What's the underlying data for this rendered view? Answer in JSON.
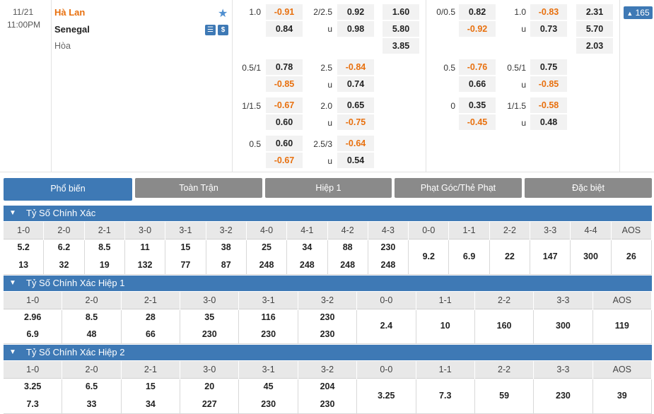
{
  "match": {
    "date": "11/21",
    "time": "11:00PM",
    "home": "Hà Lan",
    "away": "Senegal",
    "draw": "Hòa",
    "more_count": "165"
  },
  "odds_top": {
    "handicap": [
      {
        "line": "1.0",
        "home": "-0.91",
        "away": "0.84"
      },
      {
        "line": "0.5/1",
        "home": "0.78",
        "away": "-0.85"
      },
      {
        "line": "1/1.5",
        "home": "-0.67",
        "away": "0.60"
      },
      {
        "line": "0.5",
        "home": "0.60",
        "away": "-0.67"
      }
    ],
    "overunder": [
      {
        "line": "2/2.5",
        "u": "u",
        "over": "0.92",
        "under": "0.98"
      },
      {
        "line": "2.5",
        "u": "u",
        "over": "-0.84",
        "under": "0.74"
      },
      {
        "line": "2.0",
        "u": "u",
        "over": "0.65",
        "under": "-0.75"
      },
      {
        "line": "2.5/3",
        "u": "u",
        "over": "-0.64",
        "under": "0.54"
      }
    ],
    "x12": [
      "1.60",
      "5.80",
      "3.85"
    ],
    "h1_handicap": [
      {
        "line": "0/0.5",
        "home": "0.82",
        "away": "-0.92"
      },
      {
        "line": "0.5",
        "home": "-0.76",
        "away": "0.66"
      },
      {
        "line": "0",
        "home": "0.35",
        "away": "-0.45"
      }
    ],
    "h1_overunder": [
      {
        "line": "1.0",
        "u": "u",
        "over": "-0.83",
        "under": "0.73"
      },
      {
        "line": "0.5/1",
        "u": "u",
        "over": "0.75",
        "under": "-0.85"
      },
      {
        "line": "1/1.5",
        "u": "u",
        "over": "-0.58",
        "under": "0.48"
      }
    ],
    "h1_x12": [
      "2.31",
      "5.70",
      "2.03"
    ]
  },
  "tabs": [
    "Phổ biến",
    "Toàn Trận",
    "Hiệp 1",
    "Phạt Góc/Thẻ Phạt",
    "Đặc biệt"
  ],
  "sections": [
    {
      "title": "Tỷ Số Chính Xác",
      "headers": [
        "1-0",
        "2-0",
        "2-1",
        "3-0",
        "3-1",
        "3-2",
        "4-0",
        "4-1",
        "4-2",
        "4-3",
        "0-0",
        "1-1",
        "2-2",
        "3-3",
        "4-4",
        "AOS"
      ],
      "top": [
        "5.2",
        "6.2",
        "8.5",
        "11",
        "15",
        "38",
        "25",
        "34",
        "88",
        "230",
        "9.2",
        "6.9",
        "22",
        "147",
        "300",
        "26"
      ],
      "bottom": [
        "13",
        "32",
        "19",
        "132",
        "77",
        "87",
        "248",
        "248",
        "248",
        "248",
        "",
        "",
        "",
        "",
        "",
        ""
      ]
    },
    {
      "title": "Tỷ Số Chính Xác Hiệp 1",
      "headers": [
        "1-0",
        "2-0",
        "2-1",
        "3-0",
        "3-1",
        "3-2",
        "0-0",
        "1-1",
        "2-2",
        "3-3",
        "AOS"
      ],
      "top": [
        "2.96",
        "8.5",
        "28",
        "35",
        "116",
        "230",
        "2.4",
        "10",
        "160",
        "300",
        "119"
      ],
      "bottom": [
        "6.9",
        "48",
        "66",
        "230",
        "230",
        "230",
        "",
        "",
        "",
        "",
        ""
      ]
    },
    {
      "title": "Tỷ Số Chính Xác Hiệp 2",
      "headers": [
        "1-0",
        "2-0",
        "2-1",
        "3-0",
        "3-1",
        "3-2",
        "0-0",
        "1-1",
        "2-2",
        "3-3",
        "AOS"
      ],
      "top": [
        "3.25",
        "6.5",
        "15",
        "20",
        "45",
        "204",
        "3.25",
        "7.3",
        "59",
        "230",
        "39"
      ],
      "bottom": [
        "7.3",
        "33",
        "34",
        "227",
        "230",
        "230",
        "",
        "",
        "",
        "",
        ""
      ]
    }
  ]
}
